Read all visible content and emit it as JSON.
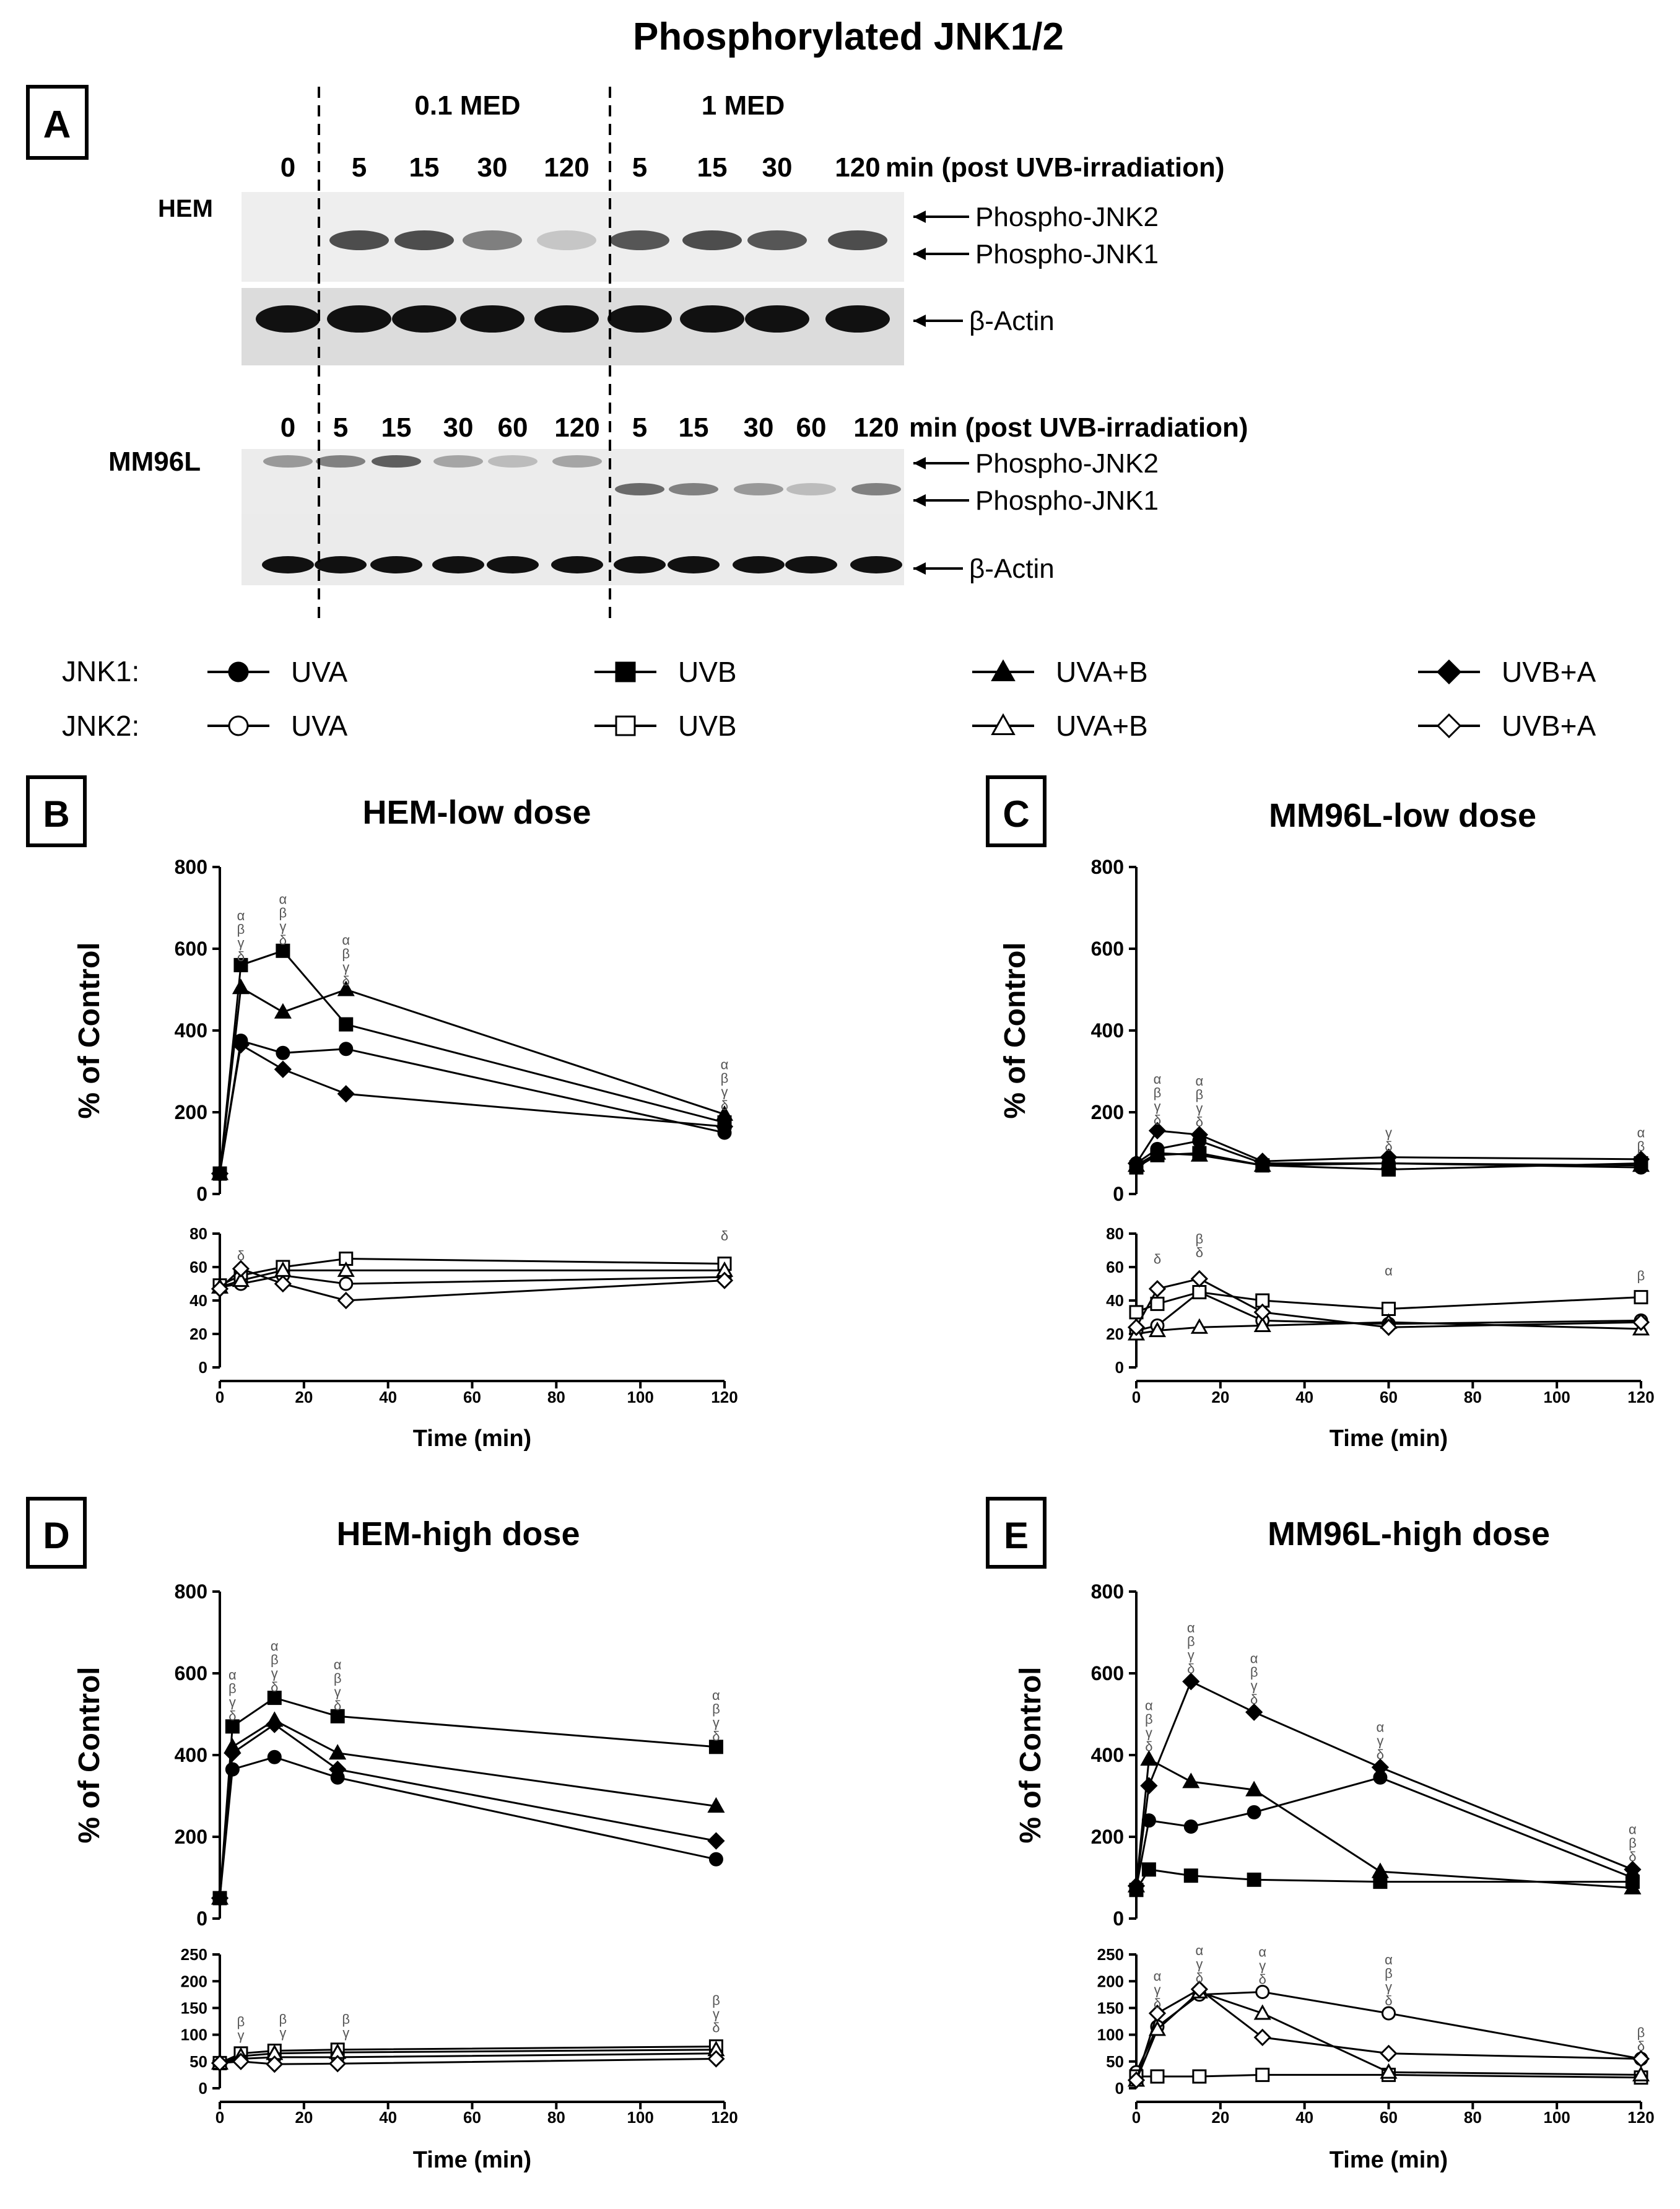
{
  "title": "Phosphorylated JNK1/2",
  "blot": {
    "panel_label": "A",
    "dose_low": "0.1 MED",
    "dose_high": "1 MED",
    "hem": {
      "cell_label": "HEM",
      "times": [
        "0",
        "5",
        "15",
        "30",
        "120",
        "5",
        "15",
        "30",
        "120"
      ],
      "time_caption": "min (post UVB-irradiation)",
      "bands": [
        "Phospho-JNK2",
        "Phospho-JNK1",
        "β-Actin"
      ]
    },
    "mm": {
      "cell_label": "MM96L",
      "times": [
        "0",
        "5",
        "15",
        "30",
        "60",
        "120",
        "5",
        "15",
        "30",
        "60",
        "120"
      ],
      "time_caption": "min (post UVB-irradiation)",
      "bands": [
        "Phospho-JNK2",
        "Phospho-JNK1",
        "β-Actin"
      ]
    }
  },
  "legend": {
    "jnk1_label": "JNK1:",
    "jnk2_label": "JNK2:",
    "items": [
      {
        "name": "UVA",
        "marker": "circle"
      },
      {
        "name": "UVB",
        "marker": "square"
      },
      {
        "name": "UVA+B",
        "marker": "triangle"
      },
      {
        "name": "UVB+A",
        "marker": "diamond"
      }
    ]
  },
  "chart_data": [
    {
      "type": "line",
      "panel": "B",
      "title": "HEM-low dose",
      "xlabel": "Time (min)",
      "ylabel": "% of Control",
      "xlim": [
        0,
        120
      ],
      "xticks": [
        0,
        20,
        40,
        60,
        80,
        100,
        120
      ],
      "top": {
        "ylim": [
          0,
          800
        ],
        "yticks": [
          0,
          200,
          400,
          600,
          800
        ]
      },
      "bottom": {
        "ylim": [
          0,
          80
        ],
        "yticks": [
          0,
          20,
          40,
          60,
          80
        ]
      },
      "jnk1": [
        {
          "name": "UVA",
          "marker": "circle",
          "x": [
            0,
            5,
            15,
            30,
            120
          ],
          "y": [
            50,
            375,
            345,
            355,
            150
          ]
        },
        {
          "name": "UVB",
          "marker": "square",
          "x": [
            0,
            5,
            15,
            30,
            120
          ],
          "y": [
            50,
            560,
            595,
            415,
            175
          ]
        },
        {
          "name": "UVA+B",
          "marker": "triangle",
          "x": [
            0,
            5,
            15,
            30,
            120
          ],
          "y": [
            50,
            505,
            445,
            500,
            195
          ]
        },
        {
          "name": "UVB+A",
          "marker": "diamond",
          "x": [
            0,
            5,
            15,
            30,
            120
          ],
          "y": [
            50,
            365,
            305,
            245,
            165
          ]
        }
      ],
      "jnk2": [
        {
          "name": "UVA",
          "marker": "circle",
          "x": [
            0,
            5,
            15,
            30,
            120
          ],
          "y": [
            48,
            50,
            55,
            50,
            54
          ]
        },
        {
          "name": "UVB",
          "marker": "square",
          "x": [
            0,
            5,
            15,
            30,
            120
          ],
          "y": [
            49,
            55,
            60,
            65,
            62
          ]
        },
        {
          "name": "UVA+B",
          "marker": "triangle",
          "x": [
            0,
            5,
            15,
            30,
            120
          ],
          "y": [
            48,
            52,
            58,
            58,
            58
          ]
        },
        {
          "name": "UVB+A",
          "marker": "diamond",
          "x": [
            0,
            5,
            15,
            30,
            120
          ],
          "y": [
            47,
            59,
            50,
            40,
            52
          ]
        }
      ],
      "annotations_top": [
        {
          "x": 5,
          "y": 570,
          "lines": [
            "α",
            "β",
            "γ",
            "δ"
          ]
        },
        {
          "x": 15,
          "y": 610,
          "lines": [
            "α",
            "β",
            "γ",
            "δ"
          ]
        },
        {
          "x": 30,
          "y": 510,
          "lines": [
            "α",
            "β",
            "γ",
            "δ"
          ]
        },
        {
          "x": 120,
          "y": 205,
          "lines": [
            "α",
            "β",
            "γ",
            "δ"
          ]
        }
      ],
      "annotations_bottom": [
        {
          "x": 5,
          "y": 64,
          "lines": [
            "δ"
          ]
        },
        {
          "x": 120,
          "y": 76,
          "lines": [
            "δ"
          ]
        }
      ]
    },
    {
      "type": "line",
      "panel": "C",
      "title": "MM96L-low dose",
      "xlabel": "Time (min)",
      "ylabel": "% of Control",
      "xlim": [
        0,
        120
      ],
      "xticks": [
        0,
        20,
        40,
        60,
        80,
        100,
        120
      ],
      "top": {
        "ylim": [
          0,
          800
        ],
        "yticks": [
          0,
          200,
          400,
          600,
          800
        ]
      },
      "bottom": {
        "ylim": [
          0,
          80
        ],
        "yticks": [
          0,
          20,
          40,
          60,
          80
        ]
      },
      "jnk1": [
        {
          "name": "UVA",
          "marker": "circle",
          "x": [
            0,
            5,
            15,
            30,
            60,
            120
          ],
          "y": [
            75,
            110,
            130,
            75,
            75,
            65
          ]
        },
        {
          "name": "UVB",
          "marker": "square",
          "x": [
            0,
            5,
            15,
            30,
            60,
            120
          ],
          "y": [
            65,
            95,
            100,
            70,
            60,
            75
          ]
        },
        {
          "name": "UVA+B",
          "marker": "triangle",
          "x": [
            0,
            5,
            15,
            30,
            60,
            120
          ],
          "y": [
            70,
            100,
            95,
            70,
            75,
            70
          ]
        },
        {
          "name": "UVB+A",
          "marker": "diamond",
          "x": [
            0,
            5,
            15,
            30,
            60,
            120
          ],
          "y": [
            75,
            155,
            145,
            80,
            90,
            85
          ]
        }
      ],
      "jnk2": [
        {
          "name": "UVA",
          "marker": "circle",
          "x": [
            0,
            5,
            15,
            30,
            60,
            120
          ],
          "y": [
            22,
            25,
            45,
            28,
            26,
            28
          ]
        },
        {
          "name": "UVB",
          "marker": "square",
          "x": [
            0,
            5,
            15,
            30,
            60,
            120
          ],
          "y": [
            33,
            38,
            45,
            40,
            35,
            42
          ]
        },
        {
          "name": "UVA+B",
          "marker": "triangle",
          "x": [
            0,
            5,
            15,
            30,
            60,
            120
          ],
          "y": [
            20,
            22,
            24,
            25,
            27,
            23
          ]
        },
        {
          "name": "UVB+A",
          "marker": "diamond",
          "x": [
            0,
            5,
            15,
            30,
            60,
            120
          ],
          "y": [
            24,
            47,
            53,
            33,
            24,
            27
          ]
        }
      ],
      "annotations_top": [
        {
          "x": 5,
          "y": 170,
          "lines": [
            "α",
            "β",
            "γ",
            "δ"
          ]
        },
        {
          "x": 15,
          "y": 165,
          "lines": [
            "α",
            "β",
            "γ",
            "δ"
          ]
        },
        {
          "x": 60,
          "y": 105,
          "lines": [
            "γ",
            "δ"
          ]
        },
        {
          "x": 120,
          "y": 105,
          "lines": [
            "α",
            "β"
          ]
        }
      ],
      "annotations_bottom": [
        {
          "x": 5,
          "y": 62,
          "lines": [
            "δ"
          ]
        },
        {
          "x": 15,
          "y": 66,
          "lines": [
            "β",
            "δ"
          ]
        },
        {
          "x": 60,
          "y": 55,
          "lines": [
            "α"
          ]
        },
        {
          "x": 120,
          "y": 52,
          "lines": [
            "β"
          ]
        }
      ]
    },
    {
      "type": "line",
      "panel": "D",
      "title": "HEM-high dose",
      "xlabel": "Time (min)",
      "ylabel": "% of Control",
      "xlim": [
        0,
        120
      ],
      "xticks": [
        0,
        20,
        40,
        60,
        80,
        100,
        120
      ],
      "top": {
        "ylim": [
          0,
          800
        ],
        "yticks": [
          0,
          200,
          400,
          600,
          800
        ]
      },
      "bottom": {
        "ylim": [
          0,
          250
        ],
        "yticks": [
          0,
          50,
          100,
          150,
          200,
          250
        ]
      },
      "jnk1": [
        {
          "name": "UVA",
          "marker": "circle",
          "x": [
            0,
            3,
            13,
            28,
            118
          ],
          "y": [
            50,
            365,
            395,
            345,
            145
          ]
        },
        {
          "name": "UVB",
          "marker": "square",
          "x": [
            0,
            3,
            13,
            28,
            118
          ],
          "y": [
            50,
            470,
            540,
            495,
            420
          ]
        },
        {
          "name": "UVA+B",
          "marker": "triangle",
          "x": [
            0,
            3,
            13,
            28,
            118
          ],
          "y": [
            50,
            420,
            485,
            405,
            275
          ]
        },
        {
          "name": "UVB+A",
          "marker": "diamond",
          "x": [
            0,
            3,
            13,
            28,
            118
          ],
          "y": [
            50,
            405,
            475,
            365,
            190
          ]
        }
      ],
      "jnk2": [
        {
          "name": "UVA",
          "marker": "circle",
          "x": [
            0,
            5,
            13,
            28,
            118
          ],
          "y": [
            47,
            55,
            58,
            58,
            65
          ]
        },
        {
          "name": "UVB",
          "marker": "square",
          "x": [
            0,
            5,
            13,
            28,
            118
          ],
          "y": [
            47,
            65,
            70,
            72,
            78
          ]
        },
        {
          "name": "UVA+B",
          "marker": "triangle",
          "x": [
            0,
            5,
            13,
            28,
            118
          ],
          "y": [
            47,
            60,
            65,
            67,
            72
          ]
        },
        {
          "name": "UVB+A",
          "marker": "diamond",
          "x": [
            0,
            5,
            13,
            28,
            118
          ],
          "y": [
            47,
            50,
            45,
            46,
            55
          ]
        }
      ],
      "annotations_top": [
        {
          "x": 3,
          "y": 485,
          "lines": [
            "α",
            "β",
            "γ",
            "δ"
          ]
        },
        {
          "x": 13,
          "y": 555,
          "lines": [
            "α",
            "β",
            "γ",
            "δ"
          ]
        },
        {
          "x": 28,
          "y": 510,
          "lines": [
            "α",
            "β",
            "γ",
            "δ"
          ]
        },
        {
          "x": 118,
          "y": 435,
          "lines": [
            "α",
            "β",
            "γ",
            "δ"
          ]
        }
      ],
      "annotations_bottom": [
        {
          "x": 5,
          "y": 90,
          "lines": [
            "β",
            "γ"
          ]
        },
        {
          "x": 15,
          "y": 95,
          "lines": [
            "β",
            "γ"
          ]
        },
        {
          "x": 30,
          "y": 95,
          "lines": [
            "β",
            "γ"
          ]
        },
        {
          "x": 118,
          "y": 105,
          "lines": [
            "β",
            "γ",
            "δ"
          ]
        }
      ]
    },
    {
      "type": "line",
      "panel": "E",
      "title": "MM96L-high dose",
      "xlabel": "Time (min)",
      "ylabel": "% of Control",
      "xlim": [
        0,
        120
      ],
      "xticks": [
        0,
        20,
        40,
        60,
        80,
        100,
        120
      ],
      "top": {
        "ylim": [
          0,
          800
        ],
        "yticks": [
          0,
          200,
          400,
          600,
          800
        ]
      },
      "bottom": {
        "ylim": [
          0,
          250
        ],
        "yticks": [
          0,
          50,
          100,
          150,
          200,
          250
        ]
      },
      "jnk1": [
        {
          "name": "UVA",
          "marker": "circle",
          "x": [
            0,
            3,
            13,
            28,
            58,
            118
          ],
          "y": [
            75,
            240,
            225,
            260,
            345,
            100
          ]
        },
        {
          "name": "UVB",
          "marker": "square",
          "x": [
            0,
            3,
            13,
            28,
            58,
            118
          ],
          "y": [
            70,
            120,
            105,
            95,
            90,
            90
          ]
        },
        {
          "name": "UVA+B",
          "marker": "triangle",
          "x": [
            0,
            3,
            13,
            28,
            58,
            118
          ],
          "y": [
            80,
            390,
            335,
            315,
            115,
            75
          ]
        },
        {
          "name": "UVB+A",
          "marker": "diamond",
          "x": [
            0,
            3,
            13,
            28,
            58,
            118
          ],
          "y": [
            80,
            325,
            580,
            505,
            370,
            120
          ]
        }
      ],
      "jnk2": [
        {
          "name": "UVA",
          "marker": "circle",
          "x": [
            0,
            5,
            15,
            30,
            60,
            120
          ],
          "y": [
            30,
            115,
            175,
            180,
            140,
            55
          ]
        },
        {
          "name": "UVB",
          "marker": "square",
          "x": [
            0,
            5,
            15,
            30,
            60,
            120
          ],
          "y": [
            22,
            22,
            22,
            25,
            25,
            20
          ]
        },
        {
          "name": "UVA+B",
          "marker": "triangle",
          "x": [
            0,
            5,
            15,
            30,
            60,
            120
          ],
          "y": [
            15,
            110,
            180,
            140,
            30,
            25
          ]
        },
        {
          "name": "UVB+A",
          "marker": "diamond",
          "x": [
            0,
            5,
            15,
            30,
            60,
            120
          ],
          "y": [
            15,
            140,
            185,
            95,
            65,
            55
          ]
        }
      ],
      "annotations_top": [
        {
          "x": 3,
          "y": 410,
          "lines": [
            "α",
            "β",
            "γ",
            "δ"
          ]
        },
        {
          "x": 13,
          "y": 600,
          "lines": [
            "α",
            "β",
            "γ",
            "δ"
          ]
        },
        {
          "x": 28,
          "y": 525,
          "lines": [
            "α",
            "β",
            "γ",
            "δ"
          ]
        },
        {
          "x": 58,
          "y": 390,
          "lines": [
            "α",
            "γ",
            "δ"
          ]
        },
        {
          "x": 118,
          "y": 140,
          "lines": [
            "α",
            "β",
            "δ"
          ]
        }
      ],
      "annotations_bottom": [
        {
          "x": 5,
          "y": 150,
          "lines": [
            "α",
            "γ",
            "δ"
          ]
        },
        {
          "x": 15,
          "y": 198,
          "lines": [
            "α",
            "γ",
            "δ"
          ]
        },
        {
          "x": 30,
          "y": 195,
          "lines": [
            "α",
            "γ",
            "δ"
          ]
        },
        {
          "x": 60,
          "y": 155,
          "lines": [
            "α",
            "β",
            "γ",
            "δ"
          ]
        },
        {
          "x": 120,
          "y": 70,
          "lines": [
            "β",
            "δ"
          ]
        }
      ]
    }
  ]
}
